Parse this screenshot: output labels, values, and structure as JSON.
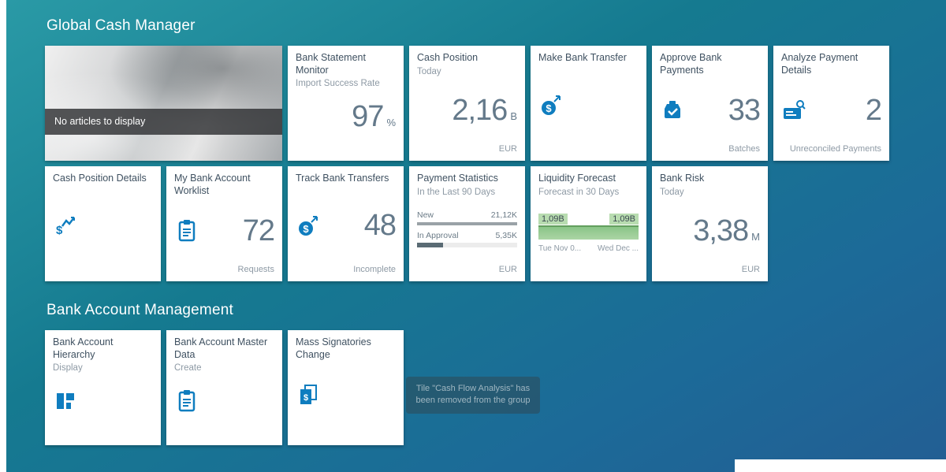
{
  "colors": {
    "accent_blue": "#0f7dbf",
    "positive_green": "#2e7d32",
    "negative_red": "#cc1a1a",
    "neutral_number_gray": "#64798a"
  },
  "groups": {
    "cash": {
      "title": "Global Cash Manager"
    },
    "bam": {
      "title": "Bank Account Management"
    }
  },
  "tiles": {
    "news": {
      "message": "No articles to display"
    },
    "bank_statement_monitor": {
      "title": "Bank Statement Monitor",
      "subtitle": "Import Success Rate",
      "value": "97",
      "unit": "%",
      "value_color": "#2e7d32"
    },
    "cash_position": {
      "title": "Cash Position",
      "subtitle": "Today",
      "value": "2,16",
      "unit": "B",
      "footer": "EUR",
      "value_color": "#2e7d32"
    },
    "make_bank_transfer": {
      "title": "Make Bank Transfer"
    },
    "approve_bank_payments": {
      "title": "Approve Bank Payments",
      "value": "33",
      "footer": "Batches"
    },
    "analyze_payment_details": {
      "title": "Analyze Payment Details",
      "value": "2",
      "footer": "Unreconciled Payments"
    },
    "cash_position_details": {
      "title": "Cash Position Details"
    },
    "my_bank_account_worklist": {
      "title": "My Bank Account Worklist",
      "value": "72",
      "footer": "Requests"
    },
    "track_bank_transfers": {
      "title": "Track Bank Transfers",
      "value": "48",
      "footer": "Incomplete"
    },
    "payment_statistics": {
      "title": "Payment Statistics",
      "subtitle": "In the Last 90 Days",
      "footer": "EUR",
      "bars": [
        {
          "label": "New",
          "value": "21,12K",
          "pct": 100
        },
        {
          "label": "In Approval",
          "value": "5,35K",
          "pct": 26
        }
      ]
    },
    "liquidity_forecast": {
      "title": "Liquidity Forecast",
      "subtitle": "Forecast in 30 Days",
      "left_value": "1,09B",
      "right_value": "1,09B",
      "left_axis": "Tue Nov 0...",
      "right_axis": "Wed Dec ..."
    },
    "bank_risk": {
      "title": "Bank Risk",
      "subtitle": "Today",
      "value": "3,38",
      "unit": "M",
      "footer": "EUR",
      "value_color": "#cc1a1a"
    },
    "bank_account_hierarchy": {
      "title": "Bank Account Hierarchy",
      "subtitle": "Display"
    },
    "bank_account_master_data": {
      "title": "Bank Account Master Data",
      "subtitle": "Create"
    },
    "mass_signatories_change": {
      "title": "Mass Signatories Change"
    }
  },
  "toast": {
    "message": "Tile \"Cash Flow Analysis\" has been removed from the group"
  }
}
